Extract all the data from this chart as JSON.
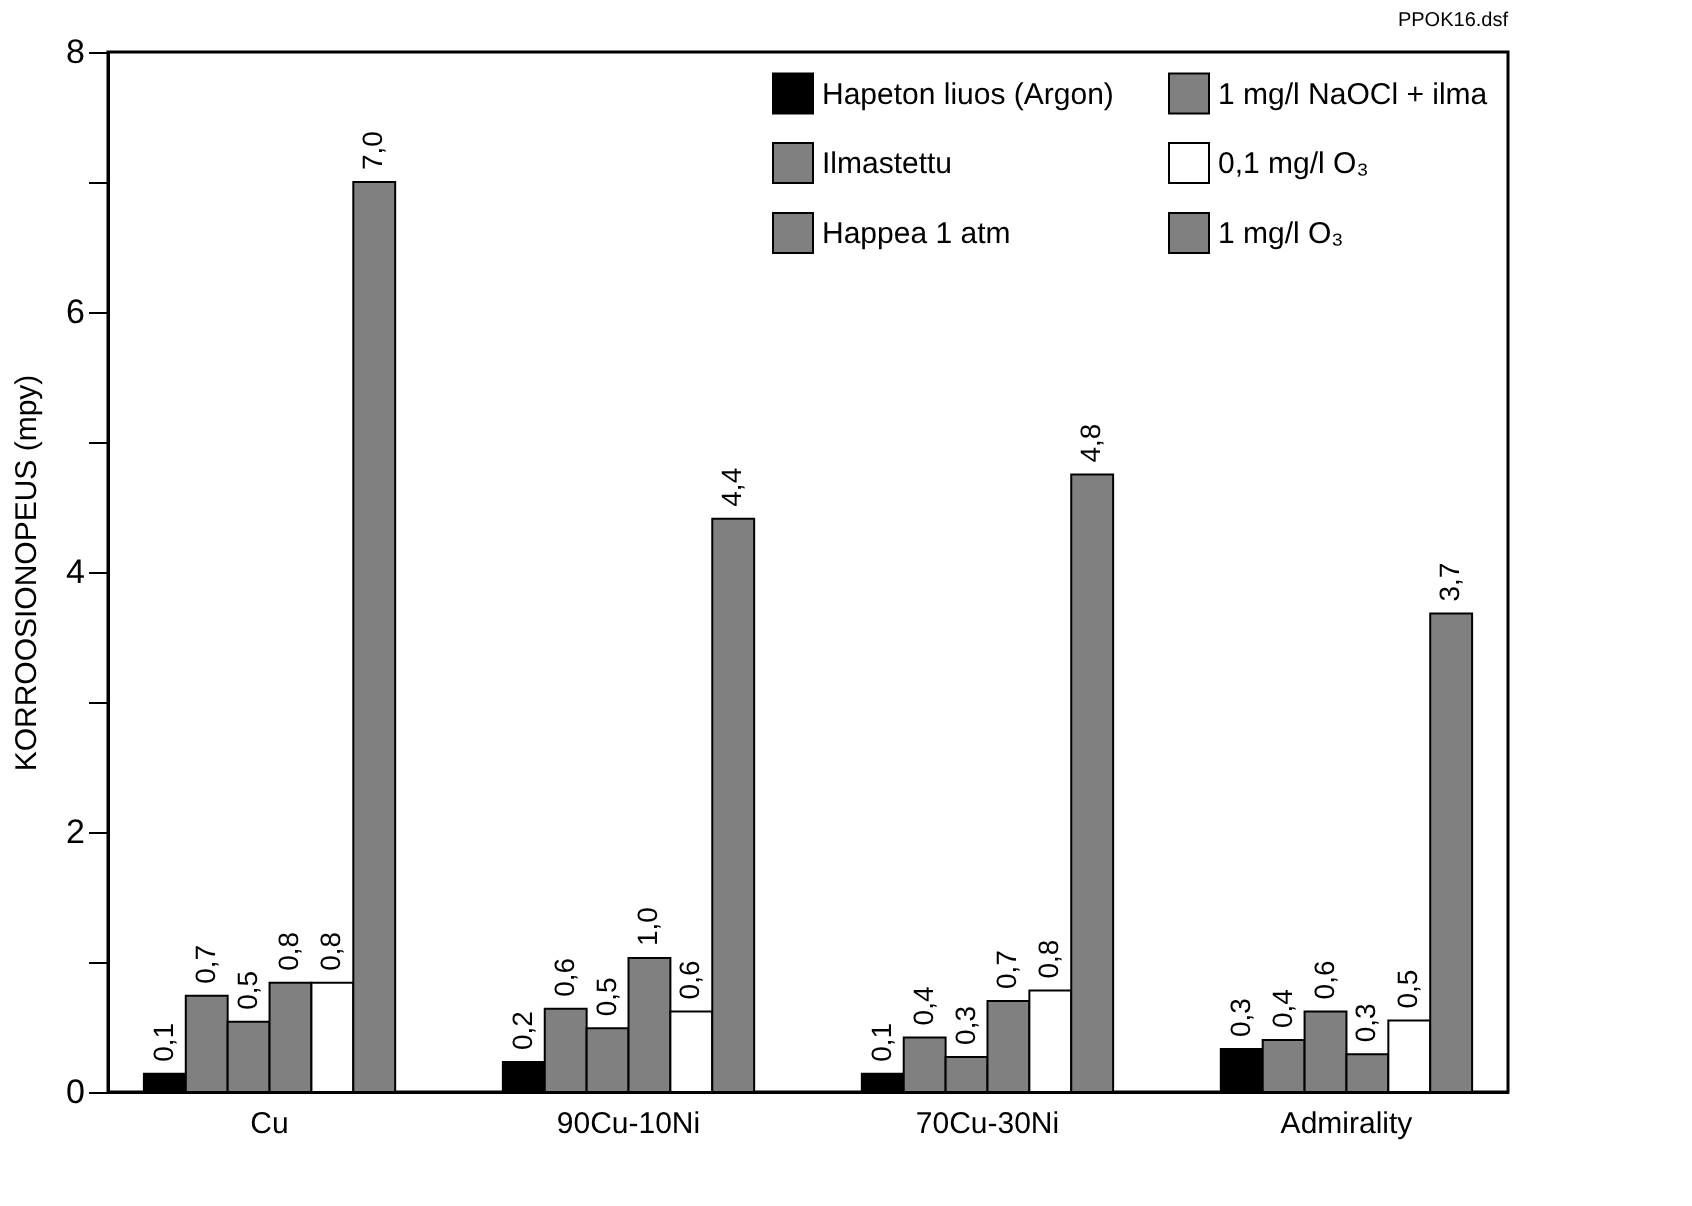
{
  "chart_data": {
    "type": "bar",
    "ylabel": "KORROOSIONOPEUS (mpy)",
    "categories": [
      "Cu",
      "90Cu-10Ni",
      "70Cu-30Ni",
      "Admirality"
    ],
    "series": [
      {
        "name": "Hapeton liuos (Argon)",
        "color": "#000000",
        "values": [
          0.14,
          0.23,
          0.14,
          0.33
        ],
        "value_labels": [
          "0,1",
          "0,2",
          "0,1",
          "0,3"
        ]
      },
      {
        "name": "Ilmastettu",
        "color": "#808080",
        "values": [
          0.74,
          0.64,
          0.42,
          0.4
        ],
        "value_labels": [
          "0,7",
          "0,6",
          "0,4",
          "0,4"
        ]
      },
      {
        "name": "Happea 1 atm",
        "color": "#808080",
        "values": [
          0.54,
          0.49,
          0.27,
          0.62
        ],
        "value_labels": [
          "0,5",
          "0,5",
          "0,3",
          "0,6"
        ]
      },
      {
        "name": "1 mg/l NaOCl + ilma",
        "color": "#808080",
        "values": [
          0.84,
          1.03,
          0.7,
          0.29
        ],
        "value_labels": [
          "0,8",
          "1,0",
          "0,7",
          "0,3"
        ]
      },
      {
        "name": "0,1 mg/l O₃",
        "color": "#ffffff",
        "values": [
          0.84,
          0.62,
          0.78,
          0.55
        ],
        "value_labels": [
          "0,8",
          "0,6",
          "0,8",
          "0,5"
        ]
      },
      {
        "name": "1 mg/l O₃",
        "color": "#808080",
        "values": [
          7.0,
          4.41,
          4.75,
          3.68
        ],
        "value_labels": [
          "7,0",
          "4,4",
          "4,8",
          "3,7"
        ]
      }
    ],
    "ylim": [
      0,
      8
    ],
    "yticks": [
      0,
      {
        "value": 1,
        "label": null
      },
      2,
      {
        "value": 3,
        "label": null
      },
      4,
      {
        "value": 5,
        "label": null
      },
      6,
      {
        "value": 7,
        "label": null
      },
      8
    ],
    "grid": false,
    "legend": "top right",
    "annotations": [
      "PPOK16.dsf"
    ]
  }
}
